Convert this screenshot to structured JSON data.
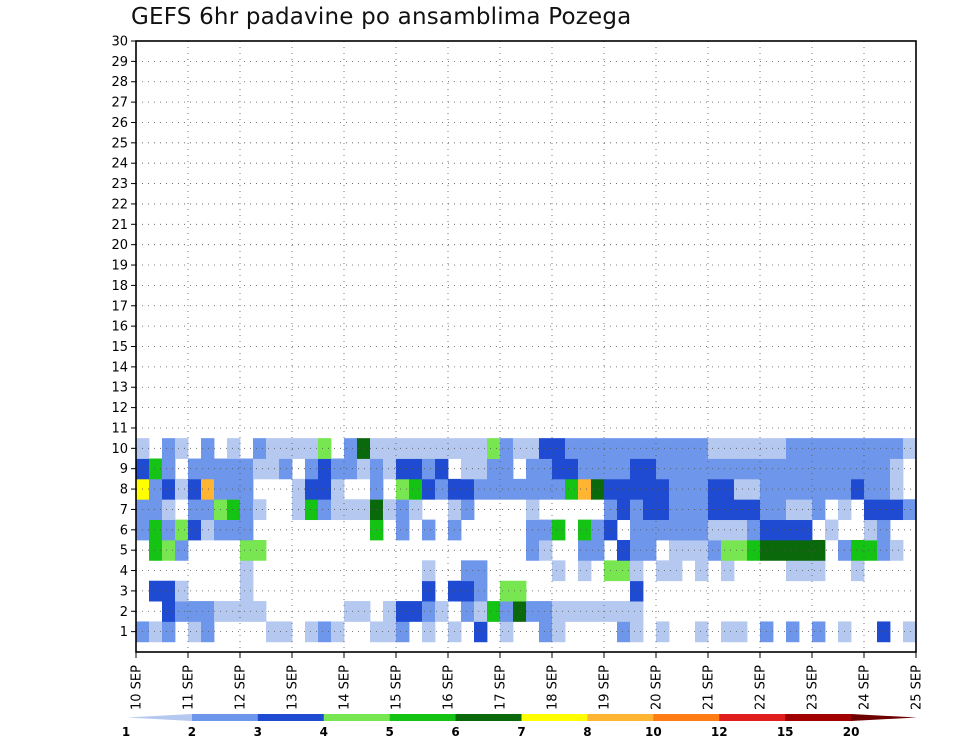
{
  "chart_data": {
    "type": "heatmap",
    "title": "GEFS 6hr padavine po ansamblima Pozega",
    "xlabel": "",
    "ylabel": "",
    "x_ticks": [
      "10 SEP",
      "11 SEP",
      "12 SEP",
      "13 SEP",
      "14 SEP",
      "15 SEP",
      "16 SEP",
      "17 SEP",
      "18 SEP",
      "19 SEP",
      "20 SEP",
      "21 SEP",
      "22 SEP",
      "23 SEP",
      "24 SEP",
      "25 SEP"
    ],
    "y_ticks": [
      1,
      2,
      3,
      4,
      5,
      6,
      7,
      8,
      9,
      10,
      11,
      12,
      13,
      14,
      15,
      16,
      17,
      18,
      19,
      20,
      21,
      22,
      23,
      24,
      25,
      26,
      27,
      28,
      29,
      30
    ],
    "steps_per_day": 4,
    "ylim": [
      0,
      30
    ],
    "grid": true,
    "levels": [
      1,
      2,
      3,
      4,
      5,
      6,
      7,
      8,
      10,
      12,
      15,
      20
    ],
    "colors": [
      "#b4c8f0",
      "#6e96eb",
      "#1e4bd2",
      "#78e650",
      "#14c314",
      "#0a690a",
      "#ffff00",
      "#ffb432",
      "#ff7d14",
      "#e11e1e",
      "#a00000",
      "#6e0000"
    ],
    "cells": [
      [
        1,
        0,
        2
      ],
      [
        1,
        1,
        1
      ],
      [
        1,
        2,
        2
      ],
      [
        1,
        4,
        1
      ],
      [
        1,
        5,
        2
      ],
      [
        1,
        10,
        1
      ],
      [
        1,
        11,
        1
      ],
      [
        1,
        13,
        1
      ],
      [
        1,
        14,
        2
      ],
      [
        1,
        15,
        1
      ],
      [
        1,
        18,
        1
      ],
      [
        1,
        19,
        1
      ],
      [
        1,
        20,
        2
      ],
      [
        1,
        22,
        1
      ],
      [
        1,
        24,
        1
      ],
      [
        1,
        26,
        3
      ],
      [
        1,
        28,
        1
      ],
      [
        1,
        31,
        2
      ],
      [
        1,
        32,
        1
      ],
      [
        1,
        37,
        2
      ],
      [
        1,
        38,
        1
      ],
      [
        1,
        40,
        1
      ],
      [
        1,
        43,
        1
      ],
      [
        1,
        45,
        1
      ],
      [
        1,
        46,
        1
      ],
      [
        1,
        48,
        2
      ],
      [
        1,
        50,
        2
      ],
      [
        1,
        52,
        2
      ],
      [
        1,
        54,
        1
      ],
      [
        1,
        57,
        3
      ],
      [
        1,
        59,
        1
      ],
      [
        2,
        2,
        3
      ],
      [
        2,
        3,
        2
      ],
      [
        2,
        4,
        2
      ],
      [
        2,
        5,
        2
      ],
      [
        2,
        6,
        1
      ],
      [
        2,
        7,
        1
      ],
      [
        2,
        8,
        1
      ],
      [
        2,
        9,
        1
      ],
      [
        2,
        16,
        1
      ],
      [
        2,
        17,
        1
      ],
      [
        2,
        19,
        1
      ],
      [
        2,
        20,
        3
      ],
      [
        2,
        21,
        3
      ],
      [
        2,
        22,
        2
      ],
      [
        2,
        23,
        1
      ],
      [
        2,
        25,
        2
      ],
      [
        2,
        26,
        1
      ],
      [
        2,
        27,
        5
      ],
      [
        2,
        28,
        2
      ],
      [
        2,
        29,
        6
      ],
      [
        2,
        30,
        2
      ],
      [
        2,
        31,
        2
      ],
      [
        2,
        32,
        1
      ],
      [
        2,
        33,
        1
      ],
      [
        2,
        34,
        1
      ],
      [
        2,
        35,
        1
      ],
      [
        2,
        36,
        1
      ],
      [
        2,
        37,
        1
      ],
      [
        2,
        38,
        1
      ],
      [
        3,
        1,
        3
      ],
      [
        3,
        2,
        3
      ],
      [
        3,
        3,
        1
      ],
      [
        3,
        8,
        1
      ],
      [
        3,
        22,
        3
      ],
      [
        3,
        24,
        3
      ],
      [
        3,
        25,
        3
      ],
      [
        3,
        26,
        2
      ],
      [
        3,
        28,
        4
      ],
      [
        3,
        29,
        4
      ],
      [
        3,
        38,
        3
      ],
      [
        4,
        8,
        1
      ],
      [
        4,
        22,
        1
      ],
      [
        4,
        25,
        2
      ],
      [
        4,
        26,
        2
      ],
      [
        4,
        32,
        1
      ],
      [
        4,
        34,
        1
      ],
      [
        4,
        36,
        4
      ],
      [
        4,
        37,
        4
      ],
      [
        4,
        38,
        1
      ],
      [
        4,
        40,
        1
      ],
      [
        4,
        41,
        1
      ],
      [
        4,
        43,
        1
      ],
      [
        4,
        45,
        1
      ],
      [
        4,
        50,
        1
      ],
      [
        4,
        51,
        1
      ],
      [
        4,
        52,
        1
      ],
      [
        4,
        55,
        1
      ],
      [
        5,
        1,
        5
      ],
      [
        5,
        2,
        4
      ],
      [
        5,
        3,
        2
      ],
      [
        5,
        8,
        4
      ],
      [
        5,
        9,
        4
      ],
      [
        5,
        30,
        2
      ],
      [
        5,
        31,
        1
      ],
      [
        5,
        34,
        2
      ],
      [
        5,
        35,
        2
      ],
      [
        5,
        37,
        3
      ],
      [
        5,
        38,
        2
      ],
      [
        5,
        39,
        2
      ],
      [
        5,
        41,
        1
      ],
      [
        5,
        42,
        1
      ],
      [
        5,
        43,
        1
      ],
      [
        5,
        44,
        2
      ],
      [
        5,
        45,
        4
      ],
      [
        5,
        46,
        4
      ],
      [
        5,
        47,
        5
      ],
      [
        5,
        48,
        6
      ],
      [
        5,
        49,
        6
      ],
      [
        5,
        50,
        6
      ],
      [
        5,
        51,
        6
      ],
      [
        5,
        52,
        6
      ],
      [
        5,
        54,
        2
      ],
      [
        5,
        55,
        5
      ],
      [
        5,
        56,
        5
      ],
      [
        5,
        57,
        2
      ],
      [
        5,
        58,
        1
      ],
      [
        6,
        0,
        2
      ],
      [
        6,
        1,
        5
      ],
      [
        6,
        2,
        2
      ],
      [
        6,
        3,
        4
      ],
      [
        6,
        4,
        3
      ],
      [
        6,
        5,
        1
      ],
      [
        6,
        6,
        2
      ],
      [
        6,
        7,
        2
      ],
      [
        6,
        8,
        2
      ],
      [
        6,
        18,
        5
      ],
      [
        6,
        20,
        2
      ],
      [
        6,
        22,
        2
      ],
      [
        6,
        24,
        2
      ],
      [
        6,
        30,
        2
      ],
      [
        6,
        31,
        2
      ],
      [
        6,
        32,
        5
      ],
      [
        6,
        34,
        5
      ],
      [
        6,
        35,
        2
      ],
      [
        6,
        36,
        3
      ],
      [
        6,
        38,
        2
      ],
      [
        6,
        39,
        2
      ],
      [
        6,
        40,
        2
      ],
      [
        6,
        41,
        2
      ],
      [
        6,
        42,
        2
      ],
      [
        6,
        43,
        2
      ],
      [
        6,
        44,
        1
      ],
      [
        6,
        45,
        1
      ],
      [
        6,
        46,
        1
      ],
      [
        6,
        47,
        2
      ],
      [
        6,
        48,
        3
      ],
      [
        6,
        49,
        3
      ],
      [
        6,
        50,
        3
      ],
      [
        6,
        51,
        3
      ],
      [
        6,
        53,
        1
      ],
      [
        6,
        56,
        1
      ],
      [
        6,
        57,
        2
      ],
      [
        7,
        0,
        2
      ],
      [
        7,
        1,
        2
      ],
      [
        7,
        2,
        1
      ],
      [
        7,
        4,
        2
      ],
      [
        7,
        5,
        2
      ],
      [
        7,
        6,
        4
      ],
      [
        7,
        7,
        5
      ],
      [
        7,
        8,
        2
      ],
      [
        7,
        9,
        1
      ],
      [
        7,
        12,
        1
      ],
      [
        7,
        13,
        5
      ],
      [
        7,
        14,
        2
      ],
      [
        7,
        15,
        1
      ],
      [
        7,
        16,
        1
      ],
      [
        7,
        17,
        1
      ],
      [
        7,
        18,
        6
      ],
      [
        7,
        19,
        1
      ],
      [
        7,
        20,
        2
      ],
      [
        7,
        21,
        1
      ],
      [
        7,
        24,
        1
      ],
      [
        7,
        25,
        2
      ],
      [
        7,
        30,
        1
      ],
      [
        7,
        36,
        2
      ],
      [
        7,
        37,
        3
      ],
      [
        7,
        38,
        2
      ],
      [
        7,
        39,
        3
      ],
      [
        7,
        40,
        3
      ],
      [
        7,
        41,
        2
      ],
      [
        7,
        42,
        2
      ],
      [
        7,
        43,
        2
      ],
      [
        7,
        44,
        3
      ],
      [
        7,
        45,
        3
      ],
      [
        7,
        46,
        3
      ],
      [
        7,
        47,
        3
      ],
      [
        7,
        48,
        2
      ],
      [
        7,
        49,
        2
      ],
      [
        7,
        50,
        1
      ],
      [
        7,
        51,
        1
      ],
      [
        7,
        52,
        2
      ],
      [
        7,
        54,
        1
      ],
      [
        7,
        56,
        3
      ],
      [
        7,
        57,
        3
      ],
      [
        7,
        58,
        3
      ],
      [
        7,
        59,
        2
      ],
      [
        8,
        0,
        7
      ],
      [
        8,
        1,
        2
      ],
      [
        8,
        2,
        3
      ],
      [
        8,
        3,
        1
      ],
      [
        8,
        4,
        3
      ],
      [
        8,
        5,
        8
      ],
      [
        8,
        6,
        2
      ],
      [
        8,
        7,
        2
      ],
      [
        8,
        8,
        2
      ],
      [
        8,
        12,
        1
      ],
      [
        8,
        13,
        3
      ],
      [
        8,
        14,
        3
      ],
      [
        8,
        15,
        1
      ],
      [
        8,
        18,
        2
      ],
      [
        8,
        20,
        4
      ],
      [
        8,
        21,
        5
      ],
      [
        8,
        22,
        3
      ],
      [
        8,
        23,
        2
      ],
      [
        8,
        24,
        3
      ],
      [
        8,
        25,
        3
      ],
      [
        8,
        26,
        2
      ],
      [
        8,
        27,
        2
      ],
      [
        8,
        28,
        2
      ],
      [
        8,
        29,
        2
      ],
      [
        8,
        30,
        2
      ],
      [
        8,
        31,
        2
      ],
      [
        8,
        32,
        2
      ],
      [
        8,
        33,
        5
      ],
      [
        8,
        34,
        8
      ],
      [
        8,
        35,
        6
      ],
      [
        8,
        36,
        3
      ],
      [
        8,
        37,
        3
      ],
      [
        8,
        38,
        3
      ],
      [
        8,
        39,
        3
      ],
      [
        8,
        40,
        3
      ],
      [
        8,
        41,
        2
      ],
      [
        8,
        42,
        2
      ],
      [
        8,
        43,
        2
      ],
      [
        8,
        44,
        3
      ],
      [
        8,
        45,
        3
      ],
      [
        8,
        46,
        1
      ],
      [
        8,
        47,
        1
      ],
      [
        8,
        48,
        2
      ],
      [
        8,
        49,
        2
      ],
      [
        8,
        50,
        2
      ],
      [
        8,
        51,
        2
      ],
      [
        8,
        52,
        2
      ],
      [
        8,
        53,
        2
      ],
      [
        8,
        54,
        2
      ],
      [
        8,
        55,
        3
      ],
      [
        8,
        56,
        2
      ],
      [
        8,
        57,
        2
      ],
      [
        8,
        58,
        1
      ],
      [
        9,
        0,
        3
      ],
      [
        9,
        1,
        5
      ],
      [
        9,
        2,
        2
      ],
      [
        9,
        4,
        2
      ],
      [
        9,
        5,
        2
      ],
      [
        9,
        6,
        2
      ],
      [
        9,
        7,
        2
      ],
      [
        9,
        8,
        2
      ],
      [
        9,
        9,
        1
      ],
      [
        9,
        10,
        1
      ],
      [
        9,
        11,
        2
      ],
      [
        9,
        13,
        2
      ],
      [
        9,
        14,
        3
      ],
      [
        9,
        15,
        2
      ],
      [
        9,
        16,
        2
      ],
      [
        9,
        17,
        1
      ],
      [
        9,
        18,
        2
      ],
      [
        9,
        19,
        1
      ],
      [
        9,
        20,
        3
      ],
      [
        9,
        21,
        3
      ],
      [
        9,
        22,
        2
      ],
      [
        9,
        23,
        3
      ],
      [
        9,
        25,
        1
      ],
      [
        9,
        26,
        1
      ],
      [
        9,
        27,
        2
      ],
      [
        9,
        28,
        2
      ],
      [
        9,
        30,
        2
      ],
      [
        9,
        31,
        2
      ],
      [
        9,
        32,
        3
      ],
      [
        9,
        33,
        3
      ],
      [
        9,
        34,
        2
      ],
      [
        9,
        35,
        2
      ],
      [
        9,
        36,
        2
      ],
      [
        9,
        37,
        2
      ],
      [
        9,
        38,
        3
      ],
      [
        9,
        39,
        3
      ],
      [
        9,
        40,
        2
      ],
      [
        9,
        41,
        2
      ],
      [
        9,
        42,
        2
      ],
      [
        9,
        43,
        2
      ],
      [
        9,
        44,
        2
      ],
      [
        9,
        45,
        2
      ],
      [
        9,
        46,
        2
      ],
      [
        9,
        47,
        2
      ],
      [
        9,
        48,
        2
      ],
      [
        9,
        49,
        2
      ],
      [
        9,
        50,
        2
      ],
      [
        9,
        51,
        2
      ],
      [
        9,
        52,
        2
      ],
      [
        9,
        53,
        2
      ],
      [
        9,
        54,
        2
      ],
      [
        9,
        55,
        2
      ],
      [
        9,
        56,
        2
      ],
      [
        9,
        57,
        2
      ],
      [
        9,
        58,
        1
      ],
      [
        10,
        0,
        1
      ],
      [
        10,
        2,
        2
      ],
      [
        10,
        3,
        1
      ],
      [
        10,
        5,
        2
      ],
      [
        10,
        7,
        1
      ],
      [
        10,
        9,
        2
      ],
      [
        10,
        10,
        1
      ],
      [
        10,
        11,
        1
      ],
      [
        10,
        12,
        1
      ],
      [
        10,
        13,
        1
      ],
      [
        10,
        14,
        4
      ],
      [
        10,
        16,
        2
      ],
      [
        10,
        17,
        6
      ],
      [
        10,
        18,
        1
      ],
      [
        10,
        19,
        1
      ],
      [
        10,
        20,
        1
      ],
      [
        10,
        21,
        1
      ],
      [
        10,
        22,
        1
      ],
      [
        10,
        23,
        1
      ],
      [
        10,
        24,
        1
      ],
      [
        10,
        25,
        1
      ],
      [
        10,
        26,
        1
      ],
      [
        10,
        27,
        4
      ],
      [
        10,
        28,
        2
      ],
      [
        10,
        29,
        1
      ],
      [
        10,
        30,
        1
      ],
      [
        10,
        31,
        3
      ],
      [
        10,
        32,
        3
      ],
      [
        10,
        33,
        2
      ],
      [
        10,
        34,
        2
      ],
      [
        10,
        35,
        2
      ],
      [
        10,
        36,
        2
      ],
      [
        10,
        37,
        2
      ],
      [
        10,
        38,
        2
      ],
      [
        10,
        39,
        2
      ],
      [
        10,
        40,
        2
      ],
      [
        10,
        41,
        2
      ],
      [
        10,
        42,
        2
      ],
      [
        10,
        43,
        2
      ],
      [
        10,
        44,
        1
      ],
      [
        10,
        45,
        1
      ],
      [
        10,
        46,
        1
      ],
      [
        10,
        47,
        1
      ],
      [
        10,
        48,
        1
      ],
      [
        10,
        49,
        1
      ],
      [
        10,
        50,
        2
      ],
      [
        10,
        51,
        2
      ],
      [
        10,
        52,
        2
      ],
      [
        10,
        53,
        2
      ],
      [
        10,
        54,
        2
      ],
      [
        10,
        55,
        2
      ],
      [
        10,
        56,
        2
      ],
      [
        10,
        57,
        2
      ],
      [
        10,
        58,
        2
      ],
      [
        10,
        59,
        1
      ]
    ]
  },
  "colorbar": {
    "labels": [
      "1",
      "2",
      "3",
      "4",
      "5",
      "6",
      "7",
      "8",
      "10",
      "12",
      "15",
      "20"
    ]
  }
}
